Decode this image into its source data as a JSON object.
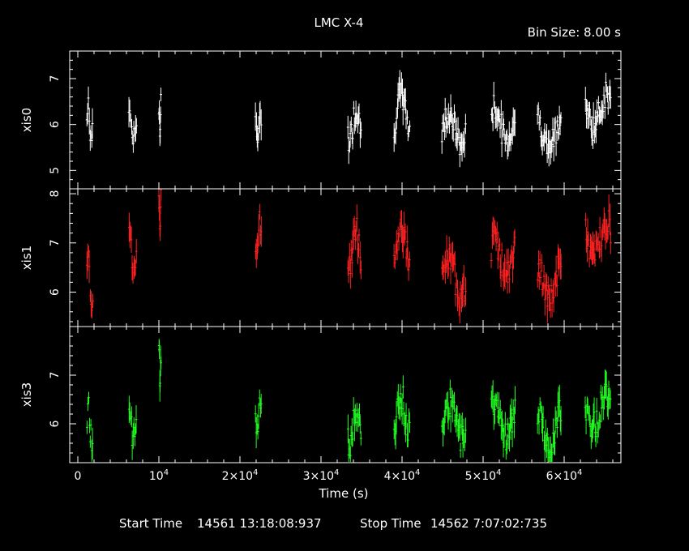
{
  "header": {
    "title": "LMC X-4",
    "bin_size": "Bin Size: 8.00 s"
  },
  "footer": {
    "start_label": "Start Time",
    "start_value": "14561 13:18:08:937",
    "stop_label": "Stop Time",
    "stop_value": "14562  7:07:02:735"
  },
  "chart_data": {
    "type": "scatter",
    "xlabel": "Time (s)",
    "xlim": [
      -1000,
      67000
    ],
    "x_ticks": [
      {
        "value": 0,
        "label": "0"
      },
      {
        "value": 10000,
        "label": "10^4"
      },
      {
        "value": 20000,
        "label": "2×10^4"
      },
      {
        "value": 30000,
        "label": "3×10^4"
      },
      {
        "value": 40000,
        "label": "4×10^4"
      },
      {
        "value": 50000,
        "label": "5×10^4"
      },
      {
        "value": 60000,
        "label": "6×10^4"
      }
    ],
    "colors": {
      "xis0": "#ffffff",
      "xis1": "#ff2020",
      "xis3": "#20ff20"
    },
    "panels": [
      {
        "name": "xis0",
        "ylabel": "xis0",
        "ylim": [
          4.6,
          7.6
        ],
        "yticks": [
          5,
          6,
          7
        ],
        "color": "#ffffff"
      },
      {
        "name": "xis1",
        "ylabel": "xis1",
        "ylim": [
          5.3,
          8.1
        ],
        "yticks": [
          6,
          7,
          8
        ],
        "color": "#ff2020"
      },
      {
        "name": "xis3",
        "ylabel": "xis3",
        "ylim": [
          5.2,
          8.0
        ],
        "yticks": [
          6,
          7
        ],
        "color": "#20ff20"
      }
    ],
    "segments": [
      {
        "start": 1100,
        "end": 1900,
        "xis0": 6.0,
        "xis1": 6.2,
        "xis3": 6.0
      },
      {
        "start": 6300,
        "end": 7300,
        "xis0": 6.0,
        "xis1": 6.8,
        "xis3": 6.0
      },
      {
        "start": 10000,
        "end": 10300,
        "xis0": 6.2,
        "xis1": 7.8,
        "xis3": 7.2
      },
      {
        "start": 21900,
        "end": 22700,
        "xis0": 6.0,
        "xis1": 7.1,
        "xis3": 6.2
      },
      {
        "start": 33300,
        "end": 35000,
        "xis0": 6.0,
        "xis1": 6.9,
        "xis3": 5.9
      },
      {
        "start": 39000,
        "end": 41000,
        "xis0": 6.3,
        "xis1": 7.0,
        "xis3": 6.2
      },
      {
        "start": 44900,
        "end": 47900,
        "xis0": 5.9,
        "xis1": 6.3,
        "xis3": 6.1
      },
      {
        "start": 51000,
        "end": 54000,
        "xis0": 6.0,
        "xis1": 6.7,
        "xis3": 6.1
      },
      {
        "start": 56700,
        "end": 59700,
        "xis0": 5.8,
        "xis1": 6.2,
        "xis3": 5.9
      },
      {
        "start": 62600,
        "end": 65800,
        "xis0": 6.3,
        "xis1": 7.1,
        "xis3": 6.3
      }
    ]
  }
}
